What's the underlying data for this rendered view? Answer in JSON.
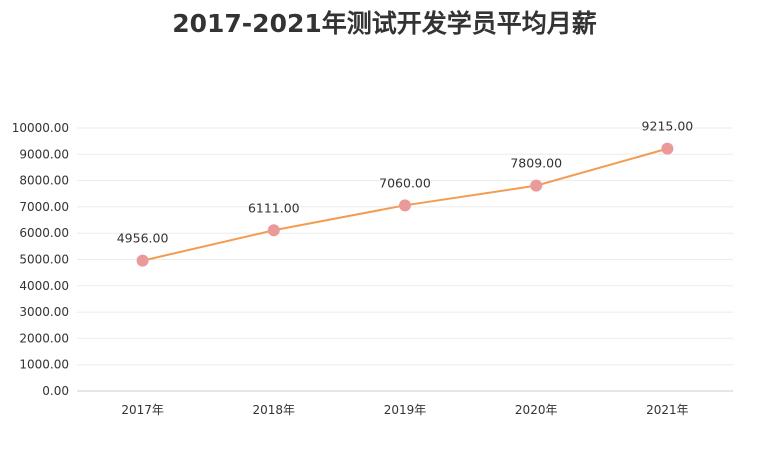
{
  "chart_data": {
    "type": "line",
    "title": "2017-2021年测试开发学员平均月薪",
    "categories": [
      "2017年",
      "2018年",
      "2019年",
      "2020年",
      "2021年"
    ],
    "series": [
      {
        "values": [
          4956.0,
          6111.0,
          7060.0,
          7809.0,
          9215.0
        ]
      }
    ],
    "data_labels": [
      "4956.00",
      "6111.00",
      "7060.00",
      "7809.00",
      "9215.00"
    ],
    "y_ticks": [
      "0.00",
      "1000.00",
      "2000.00",
      "3000.00",
      "4000.00",
      "5000.00",
      "6000.00",
      "7000.00",
      "8000.00",
      "9000.00",
      "10000.00"
    ],
    "ylim": [
      0,
      10000
    ],
    "grid": true,
    "legend": "none",
    "colors": {
      "line": "#f39c50",
      "marker": "#eb9a9a",
      "grid": "#ebebeb",
      "axis": "#cccccc",
      "text": "#333333"
    }
  }
}
